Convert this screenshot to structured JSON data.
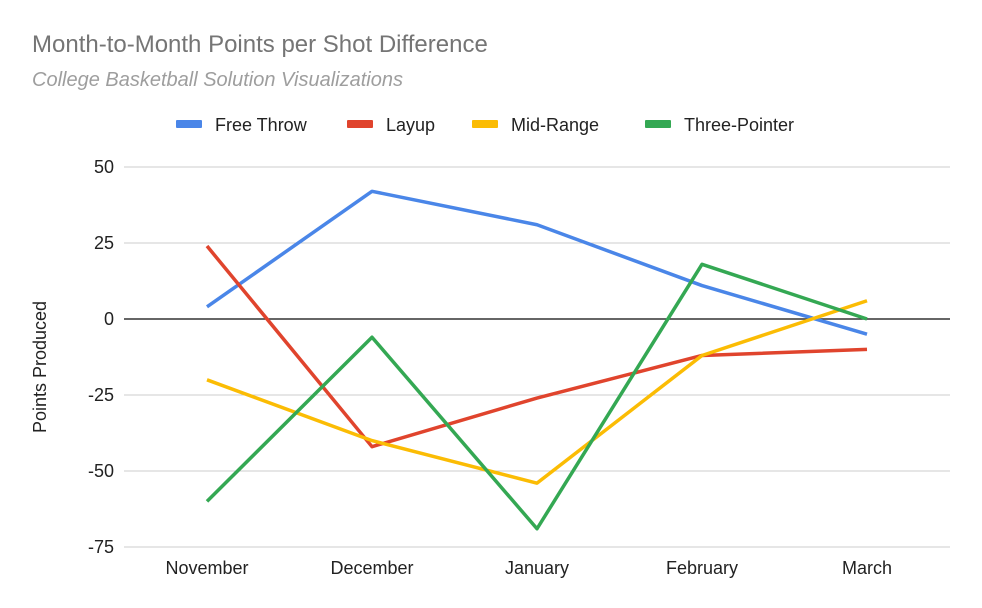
{
  "chart_data": {
    "type": "line",
    "title": "Month-to-Month Points per Shot Difference",
    "subtitle": "College Basketball Solution Visualizations",
    "xlabel": "",
    "ylabel": "Points Produced",
    "categories": [
      "November",
      "December",
      "January",
      "February",
      "March"
    ],
    "yticks": [
      50,
      25,
      0,
      -25,
      -50,
      -75
    ],
    "ylim": [
      -75,
      50
    ],
    "grid": true,
    "legend_position": "top",
    "series": [
      {
        "name": "Free Throw",
        "color": "#4a86e8",
        "values": [
          4,
          42,
          31,
          11,
          -5
        ]
      },
      {
        "name": "Layup",
        "color": "#e0442d",
        "values": [
          24,
          -42,
          -26,
          -12,
          -10
        ]
      },
      {
        "name": "Mid-Range",
        "color": "#fbbc04",
        "values": [
          -20,
          -40,
          -54,
          -12,
          6
        ]
      },
      {
        "name": "Three-Pointer",
        "color": "#34a853",
        "values": [
          -60,
          -6,
          -69,
          18,
          0
        ]
      }
    ]
  }
}
